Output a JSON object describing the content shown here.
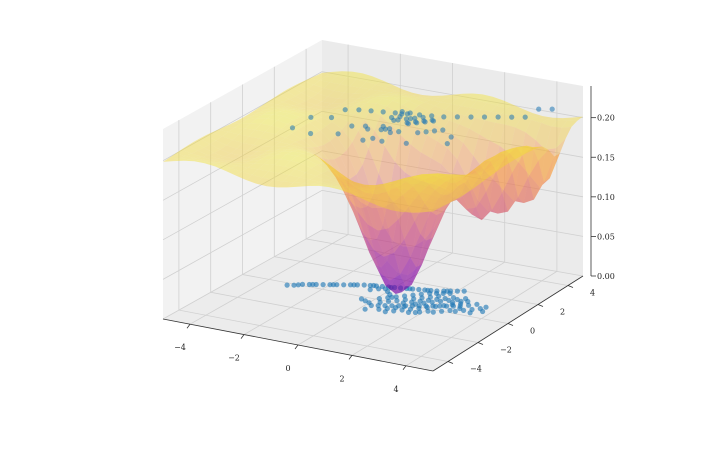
{
  "chart_data": {
    "type": "scatter",
    "subtype": "3d-scatter-with-surface",
    "title": "",
    "xlabel": "",
    "ylabel": "",
    "zlabel": "",
    "xlim": [
      -5,
      5
    ],
    "ylim": [
      -5,
      5
    ],
    "zlim": [
      0,
      0.24
    ],
    "x_ticks": [
      -4,
      -2,
      0,
      2,
      4
    ],
    "y_ticks": [
      -4,
      -2,
      0,
      2,
      4
    ],
    "z_ticks": [
      0.0,
      0.05,
      0.1,
      0.15,
      0.2
    ],
    "x_tick_labels": [
      "−4",
      "−2",
      "0",
      "2",
      "4"
    ],
    "y_tick_labels": [
      "−4",
      "−2",
      "0",
      "2",
      "4"
    ],
    "z_tick_labels": [
      "0.00",
      "0.05",
      "0.10",
      "0.15",
      "0.20"
    ],
    "grid": true,
    "legend": "none",
    "colors": {
      "points": "#1f77b4",
      "surface_colormap": "plasma",
      "pane": "#f2f2f2",
      "pane_dark": "#e6e6e6",
      "grid": "#d2d2d2"
    },
    "series": [
      {
        "kind": "scatter-floor",
        "description_level": "z = 0.0",
        "points": [
          [
            -3.2,
            -0.2
          ],
          [
            -3.0,
            -0.1
          ],
          [
            -2.8,
            0.1
          ],
          [
            -2.6,
            0.2
          ],
          [
            -2.4,
            0.3
          ],
          [
            -2.2,
            0.4
          ],
          [
            -2.0,
            0.5
          ],
          [
            -1.8,
            0.6
          ],
          [
            -1.6,
            0.7
          ],
          [
            -1.4,
            0.8
          ],
          [
            -1.2,
            0.9
          ],
          [
            -1.0,
            1.0
          ],
          [
            -0.8,
            1.05
          ],
          [
            -0.6,
            1.1
          ],
          [
            -0.4,
            1.15
          ],
          [
            -0.2,
            1.2
          ],
          [
            0.0,
            1.25
          ],
          [
            0.2,
            1.3
          ],
          [
            0.4,
            1.35
          ],
          [
            0.6,
            1.4
          ],
          [
            0.8,
            1.45
          ],
          [
            1.0,
            1.5
          ],
          [
            1.2,
            1.55
          ],
          [
            1.4,
            1.6
          ],
          [
            1.6,
            1.7
          ],
          [
            1.8,
            1.8
          ],
          [
            2.0,
            1.9
          ],
          [
            2.2,
            2.0
          ],
          [
            -2.9,
            0.0
          ],
          [
            -2.5,
            0.25
          ],
          [
            -1.9,
            0.55
          ],
          [
            -1.3,
            0.85
          ],
          [
            -0.7,
            1.1
          ],
          [
            -0.1,
            1.2
          ],
          [
            0.5,
            1.38
          ],
          [
            1.1,
            1.52
          ],
          [
            1.7,
            1.75
          ],
          [
            0.2,
            -0.6
          ],
          [
            0.4,
            -0.5
          ],
          [
            0.6,
            -0.4
          ],
          [
            0.8,
            -0.3
          ],
          [
            1.0,
            -0.2
          ],
          [
            1.2,
            -0.1
          ],
          [
            1.4,
            0.0
          ],
          [
            1.6,
            0.1
          ],
          [
            1.8,
            0.2
          ],
          [
            2.0,
            0.3
          ],
          [
            2.2,
            0.4
          ],
          [
            2.4,
            0.5
          ],
          [
            2.6,
            0.6
          ],
          [
            2.8,
            0.7
          ],
          [
            0.3,
            -0.2
          ],
          [
            0.5,
            0.0
          ],
          [
            0.7,
            0.2
          ],
          [
            0.9,
            0.4
          ],
          [
            1.1,
            0.6
          ],
          [
            1.3,
            0.8
          ],
          [
            1.5,
            1.0
          ],
          [
            1.7,
            1.2
          ],
          [
            0.9,
            -0.9
          ],
          [
            1.1,
            -0.7
          ],
          [
            1.3,
            -0.5
          ],
          [
            1.5,
            -0.3
          ],
          [
            1.7,
            -0.1
          ],
          [
            1.9,
            0.1
          ],
          [
            2.1,
            0.3
          ],
          [
            2.3,
            0.5
          ],
          [
            2.5,
            0.7
          ],
          [
            2.7,
            0.9
          ],
          [
            1.0,
            0.1
          ],
          [
            1.2,
            0.3
          ],
          [
            1.4,
            0.5
          ],
          [
            1.6,
            0.7
          ],
          [
            1.8,
            0.9
          ],
          [
            2.0,
            1.1
          ],
          [
            2.2,
            1.3
          ],
          [
            0.6,
            -0.8
          ],
          [
            0.8,
            -0.6
          ],
          [
            1.0,
            -0.4
          ],
          [
            1.2,
            -0.2
          ],
          [
            1.4,
            0.2
          ],
          [
            1.6,
            0.4
          ],
          [
            1.8,
            0.6
          ],
          [
            2.0,
            0.8
          ],
          [
            2.2,
            1.0
          ],
          [
            2.4,
            1.2
          ],
          [
            2.6,
            1.4
          ],
          [
            2.9,
            0.2
          ],
          [
            3.1,
            0.4
          ],
          [
            3.3,
            0.6
          ],
          [
            3.5,
            0.8
          ],
          [
            3.6,
            1.0
          ],
          [
            3.2,
            1.1
          ],
          [
            3.0,
            0.9
          ],
          [
            2.8,
            1.2
          ],
          [
            3.4,
            0.3
          ],
          [
            3.7,
            0.6
          ],
          [
            0.0,
            -0.4
          ],
          [
            -0.2,
            -0.3
          ],
          [
            -0.4,
            -0.2
          ],
          [
            0.1,
            0.1
          ],
          [
            0.3,
            0.3
          ],
          [
            0.5,
            0.5
          ],
          [
            0.7,
            0.7
          ],
          [
            0.9,
            0.9
          ],
          [
            1.1,
            1.1
          ],
          [
            1.3,
            1.3
          ],
          [
            -0.6,
            0.7
          ],
          [
            -0.4,
            0.9
          ],
          [
            -0.2,
            1.0
          ],
          [
            0.0,
            0.8
          ],
          [
            0.2,
            0.6
          ],
          [
            0.4,
            0.4
          ],
          [
            2.3,
            -0.2
          ],
          [
            2.5,
            0.0
          ],
          [
            2.7,
            0.2
          ],
          [
            2.9,
            0.5
          ],
          [
            1.9,
            -0.4
          ],
          [
            2.1,
            -0.2
          ],
          [
            1.6,
            -0.6
          ],
          [
            1.8,
            -0.5
          ],
          [
            2.4,
            0.9
          ],
          [
            2.6,
            1.1
          ],
          [
            1.5,
            1.4
          ],
          [
            1.7,
            1.5
          ],
          [
            1.9,
            1.6
          ],
          [
            0.2,
            -1.0
          ]
        ]
      },
      {
        "kind": "scatter-projected",
        "description_level": "near surface top, z ≈ 0.20–0.23",
        "points": [
          [
            -3.0,
            -0.2,
            0.2
          ],
          [
            -2.6,
            0.3,
            0.21
          ],
          [
            -2.0,
            0.6,
            0.21
          ],
          [
            -1.6,
            0.8,
            0.22
          ],
          [
            -1.2,
            1.0,
            0.22
          ],
          [
            -0.8,
            1.1,
            0.22
          ],
          [
            -0.4,
            1.2,
            0.22
          ],
          [
            0.0,
            1.3,
            0.22
          ],
          [
            0.4,
            1.4,
            0.22
          ],
          [
            0.8,
            1.5,
            0.22
          ],
          [
            1.2,
            1.6,
            0.22
          ],
          [
            1.6,
            1.7,
            0.22
          ],
          [
            2.0,
            1.9,
            0.22
          ],
          [
            2.4,
            2.1,
            0.22
          ],
          [
            2.8,
            2.3,
            0.22
          ],
          [
            3.2,
            2.5,
            0.22
          ],
          [
            3.6,
            2.7,
            0.22
          ],
          [
            4.0,
            2.9,
            0.22
          ],
          [
            4.4,
            3.1,
            0.23
          ],
          [
            4.8,
            3.3,
            0.23
          ],
          [
            0.2,
            -0.5,
            0.21
          ],
          [
            0.4,
            -0.3,
            0.22
          ],
          [
            0.6,
            -0.1,
            0.22
          ],
          [
            0.8,
            0.1,
            0.23
          ],
          [
            1.0,
            0.3,
            0.23
          ],
          [
            1.2,
            0.5,
            0.23
          ],
          [
            1.4,
            0.7,
            0.23
          ],
          [
            0.6,
            -0.6,
            0.21
          ],
          [
            0.8,
            -0.4,
            0.22
          ],
          [
            1.0,
            -0.2,
            0.22
          ],
          [
            1.2,
            0.0,
            0.23
          ],
          [
            1.4,
            0.2,
            0.23
          ],
          [
            1.6,
            0.4,
            0.23
          ],
          [
            1.8,
            0.6,
            0.23
          ],
          [
            0.3,
            0.0,
            0.22
          ],
          [
            0.5,
            0.2,
            0.23
          ],
          [
            0.7,
            0.4,
            0.23
          ],
          [
            0.9,
            0.6,
            0.22
          ],
          [
            1.1,
            0.8,
            0.22
          ],
          [
            1.3,
            1.0,
            0.22
          ],
          [
            1.5,
            1.2,
            0.22
          ],
          [
            1.0,
            0.0,
            0.24
          ],
          [
            1.2,
            0.2,
            0.24
          ],
          [
            0.9,
            0.2,
            0.24
          ],
          [
            1.1,
            0.4,
            0.23
          ],
          [
            0.7,
            0.0,
            0.23
          ],
          [
            0.5,
            -0.2,
            0.22
          ],
          [
            1.6,
            0.0,
            0.22
          ],
          [
            1.8,
            0.2,
            0.22
          ],
          [
            2.0,
            0.4,
            0.22
          ],
          [
            2.2,
            0.6,
            0.22
          ],
          [
            2.4,
            0.8,
            0.21
          ],
          [
            -0.4,
            0.2,
            0.21
          ],
          [
            -0.6,
            0.4,
            0.21
          ],
          [
            -1.0,
            0.2,
            0.21
          ],
          [
            -1.4,
            0.0,
            0.2
          ],
          [
            -2.2,
            -0.4,
            0.2
          ],
          [
            0.0,
            -0.8,
            0.21
          ],
          [
            1.4,
            -0.4,
            0.21
          ],
          [
            2.6,
            0.2,
            0.21
          ]
        ]
      },
      {
        "kind": "surface",
        "colormap": "plasma",
        "baseline_z": 0.2,
        "pits": [
          {
            "x": 0.8,
            "y": 0.2,
            "depth": 0.2,
            "width": 1.6
          },
          {
            "x": 2.6,
            "y": 2.4,
            "depth": 0.1,
            "width": 0.9
          },
          {
            "x": 3.6,
            "y": 2.9,
            "depth": 0.08,
            "width": 0.7
          },
          {
            "x": 4.4,
            "y": 3.3,
            "depth": 0.07,
            "width": 0.6
          },
          {
            "x": -0.4,
            "y": 1.2,
            "depth": 0.04,
            "width": 0.8
          }
        ]
      }
    ]
  }
}
